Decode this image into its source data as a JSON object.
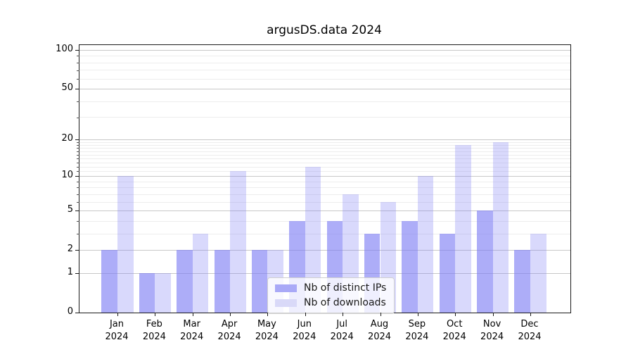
{
  "title": "argusDS.data 2024",
  "legend": {
    "items": [
      {
        "label": "Nb of distinct IPs",
        "swatch_color": "#a9a9f7"
      },
      {
        "label": "Nb of downloads",
        "swatch_color": "#d9d9f8"
      }
    ]
  },
  "chart_data": {
    "type": "bar",
    "title": "argusDS.data 2024",
    "categories": [
      "Jan",
      "Feb",
      "Mar",
      "Apr",
      "May",
      "Jun",
      "Jul",
      "Aug",
      "Sep",
      "Oct",
      "Nov",
      "Dec"
    ],
    "year_label": "2024",
    "series": [
      {
        "name": "Nb of distinct IPs",
        "color": "rgba(123,123,244,0.62)",
        "swatch_color": "#a9a9f7",
        "values": [
          2,
          1,
          2,
          2,
          2,
          4,
          4,
          3,
          4,
          3,
          5,
          2
        ]
      },
      {
        "name": "Nb of downloads",
        "color": "rgba(123,123,244,0.29)",
        "swatch_color": "#d9d9f8",
        "values": [
          10,
          1,
          3,
          11,
          2,
          12,
          7,
          6,
          10,
          18,
          19,
          3
        ]
      }
    ],
    "yscale": "log10(1+x)",
    "ylim": [
      0,
      100
    ],
    "yticks": [
      0,
      1,
      2,
      5,
      10,
      20,
      50,
      100
    ],
    "yticks_minor": [
      3,
      4,
      6,
      7,
      8,
      9,
      11,
      12,
      13,
      14,
      15,
      16,
      17,
      18,
      19,
      30,
      40,
      60,
      70,
      80,
      90
    ],
    "grid": true,
    "legend_position": "lower center",
    "colors": {
      "grid_major": "#c8c8c8",
      "grid_minor": "#ededed",
      "spine": "#1a1a1a",
      "background": "#ffffff"
    }
  }
}
